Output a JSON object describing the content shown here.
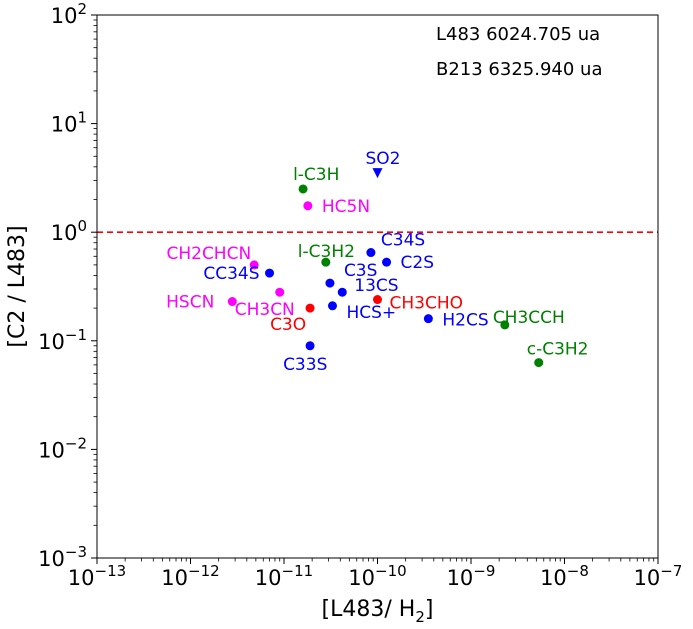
{
  "chart_data": {
    "type": "scatter",
    "xscale": "log",
    "yscale": "log",
    "xlim": [
      1e-13,
      1e-07
    ],
    "ylim": [
      0.001,
      100
    ],
    "xlabel": "[L483/ H",
    "xlabel_sub": "2",
    "xlabel_close": "]",
    "ylabel": "[C2 / L483]",
    "x_ticks": [
      {
        "value": 1e-13,
        "base": "10",
        "exp": "−13"
      },
      {
        "value": 1e-12,
        "base": "10",
        "exp": "−12"
      },
      {
        "value": 1e-11,
        "base": "10",
        "exp": "−11"
      },
      {
        "value": 1e-10,
        "base": "10",
        "exp": "−10"
      },
      {
        "value": 1e-09,
        "base": "10",
        "exp": "−9"
      },
      {
        "value": 1e-08,
        "base": "10",
        "exp": "−8"
      },
      {
        "value": 1e-07,
        "base": "10",
        "exp": "−7"
      }
    ],
    "y_ticks": [
      {
        "value": 100,
        "base": "10",
        "exp": "2"
      },
      {
        "value": 10,
        "base": "10",
        "exp": "1"
      },
      {
        "value": 1,
        "base": "10",
        "exp": "0"
      },
      {
        "value": 0.1,
        "base": "10",
        "exp": "−1"
      },
      {
        "value": 0.01,
        "base": "10",
        "exp": "−2"
      },
      {
        "value": 0.001,
        "base": "10",
        "exp": "−3"
      }
    ],
    "reference_line": {
      "y": 1,
      "color": "#ff0000",
      "style": "dashed"
    },
    "annotations": [
      "L483 6024.705 ua",
      "B213 6325.940 ua"
    ],
    "colors": {
      "blue": "#0000ff",
      "green": "#008000",
      "magenta": "#ff00ff",
      "red": "#ff0000"
    },
    "points": [
      {
        "label": "l-C3H",
        "x": 1.6e-11,
        "y": 2.5,
        "color": "green",
        "marker": "circle"
      },
      {
        "label": "SO2",
        "x": 1e-10,
        "y": 3.5,
        "color": "blue",
        "marker": "triangle-down"
      },
      {
        "label": "HC5N",
        "x": 1.8e-11,
        "y": 1.75,
        "color": "magenta",
        "marker": "circle"
      },
      {
        "label": "C34S",
        "x": 8.5e-11,
        "y": 0.65,
        "color": "blue",
        "marker": "circle"
      },
      {
        "label": "l-C3H2",
        "x": 2.8e-11,
        "y": 0.53,
        "color": "green",
        "marker": "circle"
      },
      {
        "label": "C2S",
        "x": 1.25e-10,
        "y": 0.53,
        "color": "blue",
        "marker": "circle"
      },
      {
        "label": "CH2CHCN",
        "x": 4.8e-12,
        "y": 0.5,
        "color": "magenta",
        "marker": "circle"
      },
      {
        "label": "CC34S",
        "x": 7e-12,
        "y": 0.42,
        "color": "blue",
        "marker": "circle"
      },
      {
        "label": "C3S",
        "x": 3.1e-11,
        "y": 0.34,
        "color": "blue",
        "marker": "circle"
      },
      {
        "label": "13CS",
        "x": 4.2e-11,
        "y": 0.28,
        "color": "blue",
        "marker": "circle"
      },
      {
        "label": "CH3CN",
        "x": 9e-12,
        "y": 0.28,
        "color": "magenta",
        "marker": "circle"
      },
      {
        "label": "HSCN",
        "x": 2.8e-12,
        "y": 0.23,
        "color": "magenta",
        "marker": "circle"
      },
      {
        "label": "CH3CHO",
        "x": 1e-10,
        "y": 0.24,
        "color": "red",
        "marker": "circle"
      },
      {
        "label": "HCS+",
        "x": 3.3e-11,
        "y": 0.21,
        "color": "blue",
        "marker": "circle"
      },
      {
        "label": "C3O",
        "x": 1.9e-11,
        "y": 0.2,
        "color": "red",
        "marker": "circle"
      },
      {
        "label": "H2CS",
        "x": 3.5e-10,
        "y": 0.16,
        "color": "blue",
        "marker": "circle"
      },
      {
        "label": "CH3CCH",
        "x": 2.3e-09,
        "y": 0.14,
        "color": "green",
        "marker": "circle"
      },
      {
        "label": "C33S",
        "x": 1.9e-11,
        "y": 0.09,
        "color": "blue",
        "marker": "circle"
      },
      {
        "label": "c-C3H2",
        "x": 5.3e-09,
        "y": 0.063,
        "color": "green",
        "marker": "circle"
      }
    ]
  }
}
